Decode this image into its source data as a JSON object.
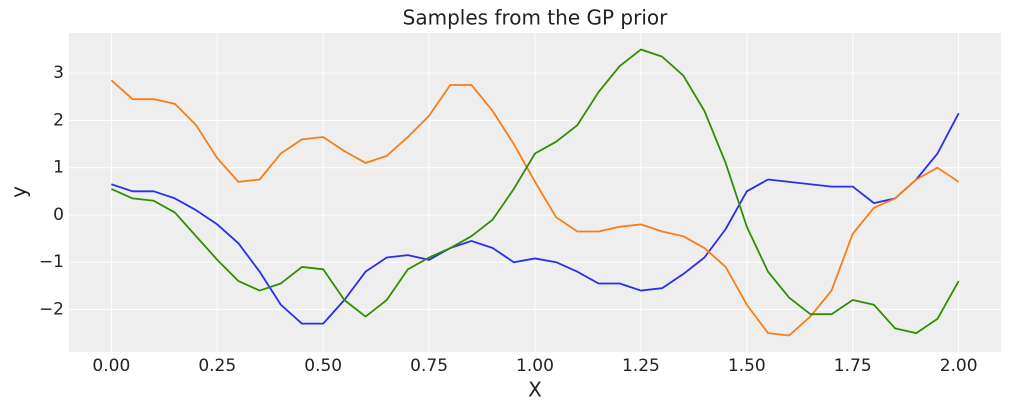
{
  "chart_data": {
    "type": "line",
    "title": "Samples from the GP prior",
    "x_label": "X",
    "y_label": "y",
    "x": [
      0,
      0.05,
      0.1,
      0.15,
      0.2,
      0.25,
      0.3,
      0.35,
      0.4,
      0.45,
      0.5,
      0.55,
      0.6,
      0.65,
      0.7,
      0.75,
      0.8,
      0.85,
      0.9,
      0.95,
      1.0,
      1.05,
      1.1,
      1.15,
      1.2,
      1.25,
      1.3,
      1.35,
      1.4,
      1.45,
      1.5,
      1.55,
      1.6,
      1.65,
      1.7,
      1.75,
      1.8,
      1.85,
      1.9,
      1.95,
      2.0
    ],
    "series": [
      {
        "color": "#2a2eec",
        "values": [
          0.65,
          0.5,
          0.5,
          0.35,
          0.1,
          -0.2,
          -0.6,
          -1.2,
          -1.9,
          -2.3,
          -2.3,
          -1.8,
          -1.2,
          -0.9,
          -0.85,
          -0.95,
          -0.7,
          -0.55,
          -0.7,
          -1.0,
          -0.92,
          -1.0,
          -1.2,
          -1.45,
          -1.45,
          -1.6,
          -1.55,
          -1.25,
          -0.9,
          -0.3,
          0.5,
          0.75,
          0.7,
          0.65,
          0.6,
          0.6,
          0.25,
          0.35,
          0.75,
          1.3,
          2.15
        ]
      },
      {
        "color": "#fa7c17",
        "values": [
          2.85,
          2.45,
          2.45,
          2.35,
          1.9,
          1.2,
          0.7,
          0.75,
          1.3,
          1.6,
          1.65,
          1.35,
          1.1,
          1.25,
          1.65,
          2.1,
          2.75,
          2.75,
          2.2,
          1.5,
          0.7,
          -0.05,
          -0.35,
          -0.35,
          -0.25,
          -0.2,
          -0.35,
          -0.45,
          -0.7,
          -1.1,
          -1.9,
          -2.5,
          -2.55,
          -2.15,
          -1.6,
          -0.4,
          0.15,
          0.35,
          0.75,
          1.0,
          0.7
        ]
      },
      {
        "color": "#328c06",
        "values": [
          0.55,
          0.35,
          0.3,
          0.05,
          -0.45,
          -0.95,
          -1.4,
          -1.6,
          -1.45,
          -1.1,
          -1.15,
          -1.8,
          -2.15,
          -1.8,
          -1.15,
          -0.9,
          -0.7,
          -0.45,
          -0.1,
          0.55,
          1.3,
          1.55,
          1.9,
          2.6,
          3.15,
          3.5,
          3.35,
          2.95,
          2.2,
          1.1,
          -0.25,
          -1.2,
          -1.75,
          -2.1,
          -2.1,
          -1.8,
          -1.9,
          -2.4,
          -2.5,
          -2.2,
          -1.4
        ]
      }
    ],
    "xlim": [
      -0.1,
      2.1
    ],
    "ylim": [
      -2.9,
      3.85
    ],
    "xticks": [
      {
        "value": 0,
        "label": "0.00"
      },
      {
        "value": 0.25,
        "label": "0.25"
      },
      {
        "value": 0.5,
        "label": "0.50"
      },
      {
        "value": 0.75,
        "label": "0.75"
      },
      {
        "value": 1.0,
        "label": "1.00"
      },
      {
        "value": 1.25,
        "label": "1.25"
      },
      {
        "value": 1.5,
        "label": "1.50"
      },
      {
        "value": 1.75,
        "label": "1.75"
      },
      {
        "value": 2.0,
        "label": "2.00"
      }
    ],
    "yticks": [
      {
        "value": -2,
        "label": "−2"
      },
      {
        "value": -1,
        "label": "−1"
      },
      0,
      1,
      2,
      3
    ],
    "grid": true,
    "background": "#eeeeee"
  }
}
